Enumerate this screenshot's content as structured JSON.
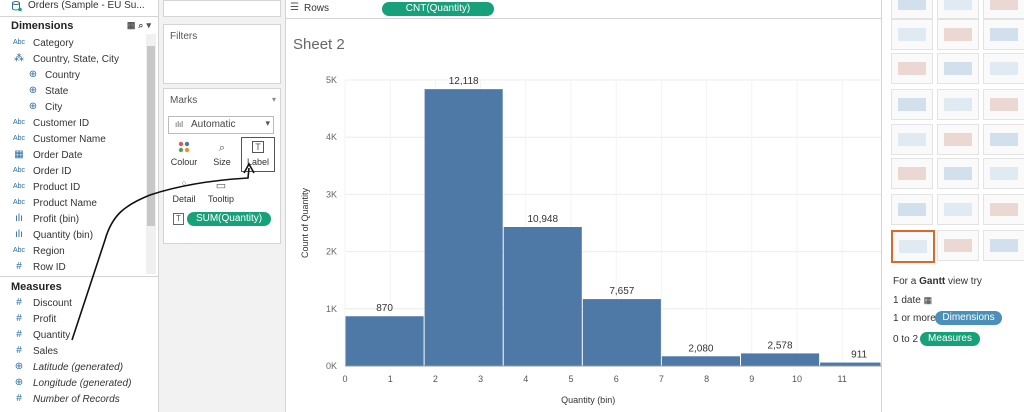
{
  "datasource": {
    "name": "Orders (Sample - EU Su..."
  },
  "dimensions": {
    "title": "Dimensions",
    "items": [
      {
        "label": "Category",
        "type": "Abc"
      },
      {
        "label": "Country, State, City",
        "type": "hier"
      },
      {
        "label": "Country",
        "type": "geo",
        "sub": true
      },
      {
        "label": "State",
        "type": "geo",
        "sub": true
      },
      {
        "label": "City",
        "type": "geo",
        "sub": true
      },
      {
        "label": "Customer ID",
        "type": "Abc"
      },
      {
        "label": "Customer Name",
        "type": "Abc"
      },
      {
        "label": "Order Date",
        "type": "date"
      },
      {
        "label": "Order ID",
        "type": "Abc"
      },
      {
        "label": "Product ID",
        "type": "Abc"
      },
      {
        "label": "Product Name",
        "type": "Abc"
      },
      {
        "label": "Profit (bin)",
        "type": "bin"
      },
      {
        "label": "Quantity (bin)",
        "type": "bin"
      },
      {
        "label": "Region",
        "type": "Abc"
      },
      {
        "label": "Row ID",
        "type": "#"
      }
    ]
  },
  "measures": {
    "title": "Measures",
    "items": [
      {
        "label": "Discount",
        "type": "#",
        "italic": false
      },
      {
        "label": "Profit",
        "type": "#",
        "italic": false
      },
      {
        "label": "Quantity",
        "type": "#",
        "italic": false
      },
      {
        "label": "Sales",
        "type": "#",
        "italic": false
      },
      {
        "label": "Latitude (generated)",
        "type": "geo",
        "italic": true
      },
      {
        "label": "Longitude (generated)",
        "type": "geo",
        "italic": true
      },
      {
        "label": "Number of Records",
        "type": "#",
        "italic": true
      }
    ]
  },
  "filters": {
    "title": "Filters"
  },
  "marks": {
    "title": "Marks",
    "type_label": "Automatic",
    "buttons": [
      "Colour",
      "Size",
      "Label",
      "Detail",
      "Tooltip"
    ],
    "pill": "SUM(Quantity)"
  },
  "rows": {
    "label": "Rows",
    "pill": "CNT(Quantity)"
  },
  "sheet": {
    "title": "Sheet 2"
  },
  "chart_data": {
    "type": "bar",
    "xlabel": "Quantity (bin)",
    "ylabel": "Count of Quantity",
    "x_ticks": [
      0,
      1,
      2,
      3,
      4,
      5,
      6,
      7,
      8,
      9,
      10,
      11
    ],
    "y_ticks": [
      "0K",
      "1K",
      "2K",
      "3K",
      "4K",
      "5K"
    ],
    "ylim": [
      0,
      5000
    ],
    "bar_color": "#4e79a7",
    "bars": [
      {
        "x0": 0.0,
        "x1": 1.75,
        "value": 870,
        "label": "870"
      },
      {
        "x0": 1.75,
        "x1": 3.5,
        "value": 4840,
        "label": "12,118"
      },
      {
        "x0": 3.5,
        "x1": 5.25,
        "value": 2430,
        "label": "10,948"
      },
      {
        "x0": 5.25,
        "x1": 7.0,
        "value": 1170,
        "label": "7,657"
      },
      {
        "x0": 7.0,
        "x1": 8.75,
        "value": 170,
        "label": "2,080"
      },
      {
        "x0": 8.75,
        "x1": 10.5,
        "value": 220,
        "label": "2,578"
      },
      {
        "x0": 10.5,
        "x1": 12.25,
        "value": 60,
        "label": "911"
      }
    ]
  },
  "showme": {
    "hint_prefix": "For a",
    "hint_bold": "Gantt",
    "hint_suffix": "view try",
    "req1": "1 date",
    "req2_prefix": "1 or more",
    "req2_pill": "Dimensions",
    "req3_prefix": "0 to 2",
    "req3_pill": "Measures"
  },
  "colors": {
    "accent_green": "#17a17a",
    "dim_blue": "#4a90b8",
    "selected": "#d86a2a"
  }
}
